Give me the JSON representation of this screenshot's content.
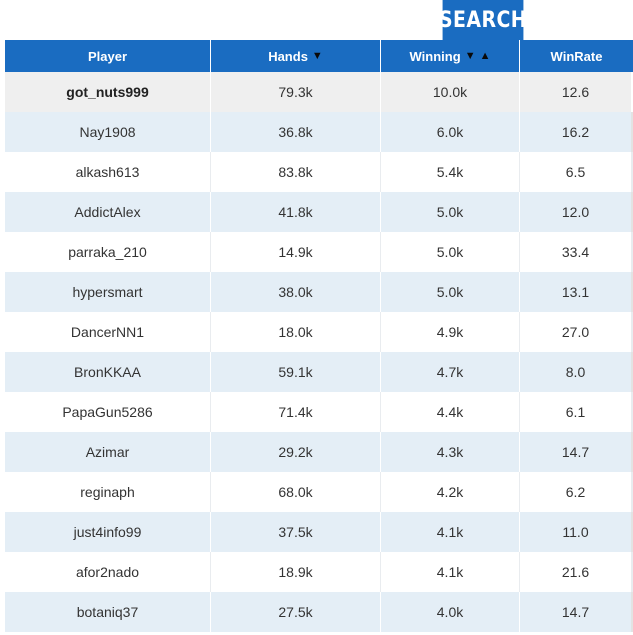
{
  "search": {
    "label": "SEARCH"
  },
  "table": {
    "headers": {
      "player": "Player",
      "hands": "Hands",
      "winning": "Winning",
      "winrate": "WinRate"
    },
    "rows": [
      {
        "player": "got_nuts999",
        "hands": "79.3k",
        "winning": "10.0k",
        "winrate": "12.6"
      },
      {
        "player": "Nay1908",
        "hands": "36.8k",
        "winning": "6.0k",
        "winrate": "16.2"
      },
      {
        "player": "alkash613",
        "hands": "83.8k",
        "winning": "5.4k",
        "winrate": "6.5"
      },
      {
        "player": "AddictAlex",
        "hands": "41.8k",
        "winning": "5.0k",
        "winrate": "12.0"
      },
      {
        "player": "parraka_210",
        "hands": "14.9k",
        "winning": "5.0k",
        "winrate": "33.4"
      },
      {
        "player": "hypersmart",
        "hands": "38.0k",
        "winning": "5.0k",
        "winrate": "13.1"
      },
      {
        "player": "DancerNN1",
        "hands": "18.0k",
        "winning": "4.9k",
        "winrate": "27.0"
      },
      {
        "player": "BronKKAA",
        "hands": "59.1k",
        "winning": "4.7k",
        "winrate": "8.0"
      },
      {
        "player": "PapaGun5286",
        "hands": "71.4k",
        "winning": "4.4k",
        "winrate": "6.1"
      },
      {
        "player": "Azimar",
        "hands": "29.2k",
        "winning": "4.3k",
        "winrate": "14.7"
      },
      {
        "player": "reginaph",
        "hands": "68.0k",
        "winning": "4.2k",
        "winrate": "6.2"
      },
      {
        "player": "just4info99",
        "hands": "37.5k",
        "winning": "4.1k",
        "winrate": "11.0"
      },
      {
        "player": "afor2nado",
        "hands": "18.9k",
        "winning": "4.1k",
        "winrate": "21.6"
      },
      {
        "player": "botaniq37",
        "hands": "27.5k",
        "winning": "4.0k",
        "winrate": "14.7"
      }
    ]
  }
}
